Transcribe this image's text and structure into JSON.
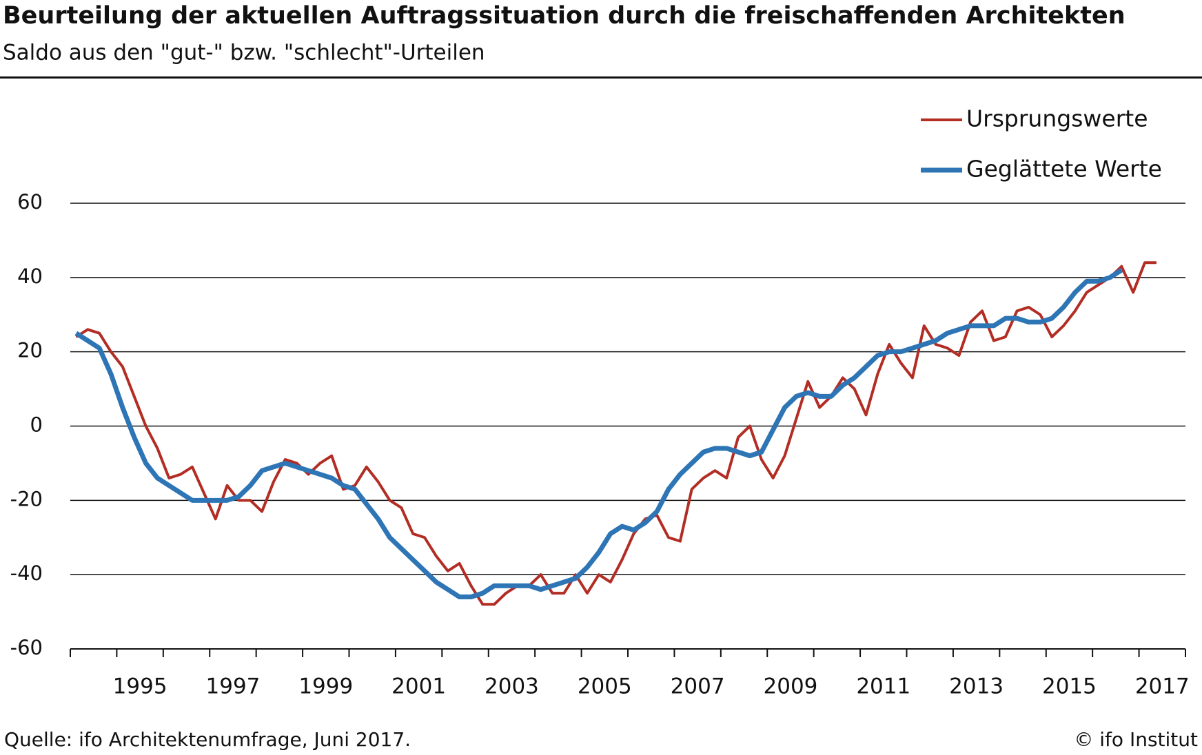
{
  "chart_data": {
    "type": "line",
    "title": "Beurteilung der aktuellen Auftragssituation durch die freischaffenden Architekten",
    "subtitle": "Saldo aus den \"gut-\" bzw. \"schlecht\"-Urteilen",
    "source": "Quelle: ifo Architektenumfrage, Juni 2017.",
    "credit": "© ifo Institut",
    "xlim": [
      1994,
      2018
    ],
    "xminor": [
      1994,
      1995,
      1996,
      1997,
      1998,
      1999,
      2000,
      2001,
      2002,
      2003,
      2004,
      2005,
      2006,
      2007,
      2008,
      2009,
      2010,
      2011,
      2012,
      2013,
      2014,
      2015,
      2016,
      2017,
      2018
    ],
    "xticks": [
      {
        "value": 1995.5,
        "label": "1995"
      },
      {
        "value": 1997.5,
        "label": "1997"
      },
      {
        "value": 1999.5,
        "label": "1999"
      },
      {
        "value": 2001.5,
        "label": "2001"
      },
      {
        "value": 2003.5,
        "label": "2003"
      },
      {
        "value": 2005.5,
        "label": "2005"
      },
      {
        "value": 2007.5,
        "label": "2007"
      },
      {
        "value": 2009.5,
        "label": "2009"
      },
      {
        "value": 2011.5,
        "label": "2011"
      },
      {
        "value": 2013.5,
        "label": "2013"
      },
      {
        "value": 2015.5,
        "label": "2015"
      },
      {
        "value": 2017.5,
        "label": "2017"
      }
    ],
    "ylim": [
      -60,
      60
    ],
    "yticks": [
      -60,
      -40,
      -20,
      0,
      20,
      40,
      60
    ],
    "grid": true,
    "legend": "top-right",
    "series": [
      {
        "name": "Ursprungswerte",
        "color": "#b22d24",
        "width": 4,
        "x": [
          1994.125,
          1994.375,
          1994.625,
          1994.875,
          1995.125,
          1995.375,
          1995.625,
          1995.875,
          1996.125,
          1996.375,
          1996.625,
          1996.875,
          1997.125,
          1997.375,
          1997.625,
          1997.875,
          1998.125,
          1998.375,
          1998.625,
          1998.875,
          1999.125,
          1999.375,
          1999.625,
          1999.875,
          2000.125,
          2000.375,
          2000.625,
          2000.875,
          2001.125,
          2001.375,
          2001.625,
          2001.875,
          2002.125,
          2002.375,
          2002.625,
          2002.875,
          2003.125,
          2003.375,
          2003.625,
          2003.875,
          2004.125,
          2004.375,
          2004.625,
          2004.875,
          2005.125,
          2005.375,
          2005.625,
          2005.875,
          2006.125,
          2006.375,
          2006.625,
          2006.875,
          2007.125,
          2007.375,
          2007.625,
          2007.875,
          2008.125,
          2008.375,
          2008.625,
          2008.875,
          2009.125,
          2009.375,
          2009.625,
          2009.875,
          2010.125,
          2010.375,
          2010.625,
          2010.875,
          2011.125,
          2011.375,
          2011.625,
          2011.875,
          2012.125,
          2012.375,
          2012.625,
          2012.875,
          2013.125,
          2013.375,
          2013.625,
          2013.875,
          2014.125,
          2014.375,
          2014.625,
          2014.875,
          2015.125,
          2015.375,
          2015.625,
          2015.875,
          2016.125,
          2016.375,
          2016.625,
          2016.875,
          2017.125,
          2017.375
        ],
        "values": [
          24,
          26,
          25,
          20,
          16,
          8,
          0,
          -6,
          -14,
          -13,
          -11,
          -18,
          -25,
          -16,
          -20,
          -20,
          -23,
          -15,
          -9,
          -10,
          -13,
          -10,
          -8,
          -17,
          -16,
          -11,
          -15,
          -20,
          -22,
          -29,
          -30,
          -35,
          -39,
          -37,
          -43,
          -48,
          -48,
          -45,
          -43,
          -43,
          -40,
          -45,
          -45,
          -40,
          -45,
          -40,
          -42,
          -36,
          -29,
          -25,
          -24,
          -30,
          -31,
          -17,
          -14,
          -12,
          -14,
          -3,
          0,
          -9,
          -14,
          -8,
          2,
          12,
          5,
          8,
          13,
          10,
          3,
          14,
          22,
          17,
          13,
          27,
          22,
          21,
          19,
          28,
          31,
          23,
          24,
          31,
          32,
          30,
          24,
          27,
          31,
          36,
          38,
          40,
          43,
          36,
          44,
          44
        ]
      },
      {
        "name": "Geglättete Werte",
        "color": "#2e75b6",
        "width": 7,
        "x": [
          1994.125,
          1994.375,
          1994.625,
          1994.875,
          1995.125,
          1995.375,
          1995.625,
          1995.875,
          1996.125,
          1996.375,
          1996.625,
          1996.875,
          1997.125,
          1997.375,
          1997.625,
          1997.875,
          1998.125,
          1998.375,
          1998.625,
          1998.875,
          1999.125,
          1999.375,
          1999.625,
          1999.875,
          2000.125,
          2000.375,
          2000.625,
          2000.875,
          2001.125,
          2001.375,
          2001.625,
          2001.875,
          2002.125,
          2002.375,
          2002.625,
          2002.875,
          2003.125,
          2003.375,
          2003.625,
          2003.875,
          2004.125,
          2004.375,
          2004.625,
          2004.875,
          2005.125,
          2005.375,
          2005.625,
          2005.875,
          2006.125,
          2006.375,
          2006.625,
          2006.875,
          2007.125,
          2007.375,
          2007.625,
          2007.875,
          2008.125,
          2008.375,
          2008.625,
          2008.875,
          2009.125,
          2009.375,
          2009.625,
          2009.875,
          2010.125,
          2010.375,
          2010.625,
          2010.875,
          2011.125,
          2011.375,
          2011.625,
          2011.875,
          2012.125,
          2012.375,
          2012.625,
          2012.875,
          2013.125,
          2013.375,
          2013.625,
          2013.875,
          2014.125,
          2014.375,
          2014.625,
          2014.875,
          2015.125,
          2015.375,
          2015.625,
          2015.875,
          2016.125,
          2016.375,
          2016.625
        ],
        "values": [
          25,
          23,
          21,
          14,
          5,
          -3,
          -10,
          -14,
          -16,
          -18,
          -20,
          -20,
          -20,
          -20,
          -19,
          -16,
          -12,
          -11,
          -10,
          -11,
          -12,
          -13,
          -14,
          -16,
          -17,
          -21,
          -25,
          -30,
          -33,
          -36,
          -39,
          -42,
          -44,
          -46,
          -46,
          -45,
          -43,
          -43,
          -43,
          -43,
          -44,
          -43,
          -42,
          -41,
          -38,
          -34,
          -29,
          -27,
          -28,
          -26,
          -23,
          -17,
          -13,
          -10,
          -7,
          -6,
          -6,
          -7,
          -8,
          -7,
          -1,
          5,
          8,
          9,
          8,
          8,
          11,
          13,
          16,
          19,
          20,
          20,
          21,
          22,
          23,
          25,
          26,
          27,
          27,
          27,
          29,
          29,
          28,
          28,
          29,
          32,
          36,
          39,
          39,
          40,
          42
        ]
      }
    ]
  }
}
